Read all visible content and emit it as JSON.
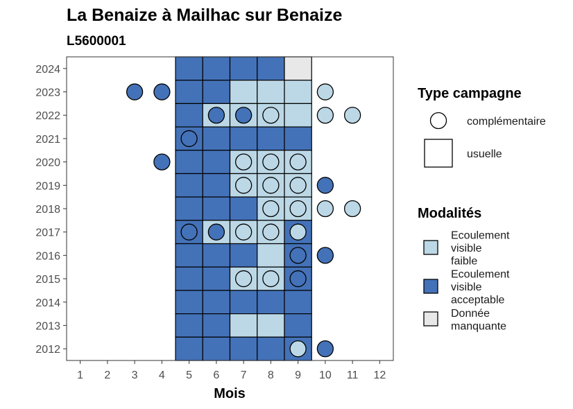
{
  "chart_data": {
    "type": "heatmap",
    "title": "La Benaize à Mailhac sur Benaize",
    "subtitle": "L5600001",
    "xlabel": "Mois",
    "ylabel": "",
    "x_ticks": [
      "1",
      "2",
      "3",
      "4",
      "5",
      "6",
      "7",
      "8",
      "9",
      "10",
      "11",
      "12"
    ],
    "y_ticks": [
      "2024",
      "2023",
      "2022",
      "2021",
      "2020",
      "2019",
      "2018",
      "2017",
      "2016",
      "2015",
      "2014",
      "2013",
      "2012"
    ],
    "x_range": [
      0.5,
      12.5
    ],
    "y_range": [
      2011.5,
      2024.5
    ],
    "grid": false,
    "legend_position": "right",
    "categories": [
      {
        "key": "faible",
        "label_lines": [
          "Ecoulement",
          "visible",
          "faible"
        ],
        "color": "#bcd8e6"
      },
      {
        "key": "acceptable",
        "label_lines": [
          "Ecoulement",
          "visible",
          "acceptable"
        ],
        "color": "#4472b8"
      },
      {
        "key": "manquante",
        "label_lines": [
          "Donnée",
          "manquante"
        ],
        "color": "#e8e8e8"
      }
    ],
    "campaign_types": [
      {
        "key": "complementaire",
        "label": "complémentaire",
        "shape": "circle"
      },
      {
        "key": "usuelle",
        "label": "usuelle",
        "shape": "square"
      }
    ],
    "legend_titles": {
      "campaign": "Type campagne",
      "modalites": "Modalités"
    },
    "usuelle": [
      {
        "year": 2024,
        "m5": "acceptable",
        "m6": "acceptable",
        "m7": "acceptable",
        "m8": "acceptable",
        "m9": "manquante"
      },
      {
        "year": 2023,
        "m5": "acceptable",
        "m6": "acceptable",
        "m7": "faible",
        "m8": "faible",
        "m9": "faible"
      },
      {
        "year": 2022,
        "m5": "acceptable",
        "m6": "faible",
        "m7": "faible",
        "m8": "faible",
        "m9": "faible"
      },
      {
        "year": 2021,
        "m5": "acceptable",
        "m6": "acceptable",
        "m7": "acceptable",
        "m8": "acceptable",
        "m9": "acceptable"
      },
      {
        "year": 2020,
        "m5": "acceptable",
        "m6": "acceptable",
        "m7": "faible",
        "m8": "faible",
        "m9": "faible"
      },
      {
        "year": 2019,
        "m5": "acceptable",
        "m6": "acceptable",
        "m7": "faible",
        "m8": "faible",
        "m9": "faible"
      },
      {
        "year": 2018,
        "m5": "acceptable",
        "m6": "acceptable",
        "m7": "acceptable",
        "m8": "faible",
        "m9": "faible"
      },
      {
        "year": 2017,
        "m5": "acceptable",
        "m6": "faible",
        "m7": "faible",
        "m8": "faible",
        "m9": "acceptable"
      },
      {
        "year": 2016,
        "m5": "acceptable",
        "m6": "acceptable",
        "m7": "acceptable",
        "m8": "faible",
        "m9": "acceptable"
      },
      {
        "year": 2015,
        "m5": "acceptable",
        "m6": "acceptable",
        "m7": "faible",
        "m8": "faible",
        "m9": "acceptable"
      },
      {
        "year": 2014,
        "m5": "acceptable",
        "m6": "acceptable",
        "m7": "acceptable",
        "m8": "acceptable",
        "m9": "acceptable"
      },
      {
        "year": 2013,
        "m5": "acceptable",
        "m6": "acceptable",
        "m7": "faible",
        "m8": "faible",
        "m9": "acceptable"
      },
      {
        "year": 2012,
        "m5": "acceptable",
        "m6": "acceptable",
        "m7": "acceptable",
        "m8": "acceptable",
        "m9": "acceptable"
      }
    ],
    "complementaire": [
      {
        "year": 2023,
        "month": 3,
        "value": "acceptable"
      },
      {
        "year": 2023,
        "month": 4,
        "value": "acceptable"
      },
      {
        "year": 2023,
        "month": 10,
        "value": "faible"
      },
      {
        "year": 2022,
        "month": 6,
        "value": "acceptable"
      },
      {
        "year": 2022,
        "month": 7,
        "value": "acceptable"
      },
      {
        "year": 2022,
        "month": 8,
        "value": "faible"
      },
      {
        "year": 2022,
        "month": 10,
        "value": "faible"
      },
      {
        "year": 2022,
        "month": 11,
        "value": "faible"
      },
      {
        "year": 2021,
        "month": 5,
        "value": "acceptable"
      },
      {
        "year": 2020,
        "month": 4,
        "value": "acceptable"
      },
      {
        "year": 2020,
        "month": 7,
        "value": "faible"
      },
      {
        "year": 2020,
        "month": 8,
        "value": "faible"
      },
      {
        "year": 2020,
        "month": 9,
        "value": "faible"
      },
      {
        "year": 2019,
        "month": 7,
        "value": "faible"
      },
      {
        "year": 2019,
        "month": 8,
        "value": "faible"
      },
      {
        "year": 2019,
        "month": 9,
        "value": "faible"
      },
      {
        "year": 2019,
        "month": 10,
        "value": "acceptable"
      },
      {
        "year": 2018,
        "month": 8,
        "value": "faible"
      },
      {
        "year": 2018,
        "month": 9,
        "value": "faible"
      },
      {
        "year": 2018,
        "month": 10,
        "value": "faible"
      },
      {
        "year": 2018,
        "month": 11,
        "value": "faible"
      },
      {
        "year": 2017,
        "month": 5,
        "value": "acceptable"
      },
      {
        "year": 2017,
        "month": 6,
        "value": "acceptable"
      },
      {
        "year": 2017,
        "month": 7,
        "value": "faible"
      },
      {
        "year": 2017,
        "month": 8,
        "value": "faible"
      },
      {
        "year": 2017,
        "month": 9,
        "value": "faible"
      },
      {
        "year": 2016,
        "month": 9,
        "value": "acceptable"
      },
      {
        "year": 2016,
        "month": 10,
        "value": "acceptable"
      },
      {
        "year": 2015,
        "month": 7,
        "value": "faible"
      },
      {
        "year": 2015,
        "month": 8,
        "value": "faible"
      },
      {
        "year": 2015,
        "month": 9,
        "value": "acceptable"
      },
      {
        "year": 2012,
        "month": 9,
        "value": "faible"
      },
      {
        "year": 2012,
        "month": 10,
        "value": "acceptable"
      }
    ]
  }
}
